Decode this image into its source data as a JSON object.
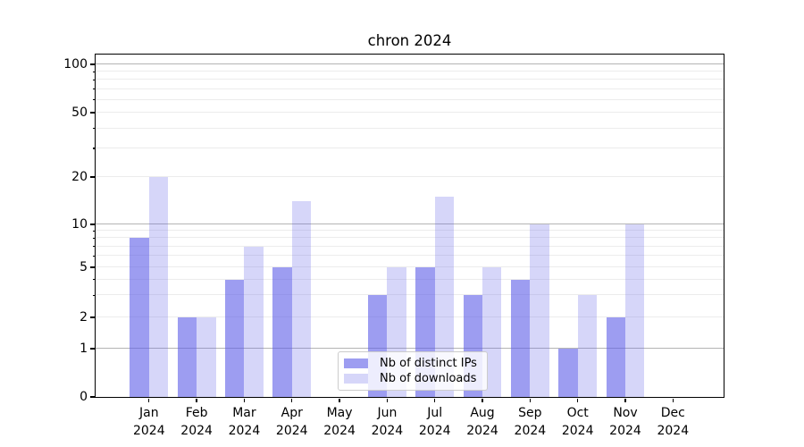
{
  "title": "chron 2024",
  "legend": {
    "border_color": "#cccccc",
    "background": "rgba(255,255,255,0.82)"
  },
  "chart_data": {
    "type": "bar",
    "title": "chron 2024",
    "x_months": [
      "Jan",
      "Feb",
      "Mar",
      "Apr",
      "May",
      "Jun",
      "Jul",
      "Aug",
      "Sep",
      "Oct",
      "Nov",
      "Dec"
    ],
    "x_year": "2024",
    "series": [
      {
        "name": "Nb of distinct IPs",
        "values": [
          8,
          2,
          4,
          5,
          0,
          3,
          5,
          3,
          4,
          1,
          2,
          0
        ],
        "color": "rgba(92,92,232,0.60)",
        "color_hex": "#9d9df1"
      },
      {
        "name": "Nb of downloads",
        "values": [
          20,
          2,
          7,
          14,
          0,
          5,
          15,
          5,
          10,
          3,
          10,
          0
        ],
        "color": "rgba(92,92,232,0.25)",
        "color_hex": "#d6d6f9"
      }
    ],
    "yscale": "log-like (linear below 1)",
    "ylim": [
      0,
      100
    ],
    "y_ticks": [
      0,
      1,
      2,
      5,
      10,
      20,
      50,
      100
    ],
    "y_major_gridlines": [
      1,
      10,
      100
    ],
    "y_minor_gridlines": [
      2,
      3,
      4,
      5,
      6,
      7,
      8,
      9,
      20,
      30,
      40,
      50,
      60,
      70,
      80,
      90
    ],
    "grid_major_color": "#b4b4b4",
    "grid_minor_color": "#ececec",
    "legend_position": "lower center",
    "xlabel": "",
    "ylabel": ""
  }
}
